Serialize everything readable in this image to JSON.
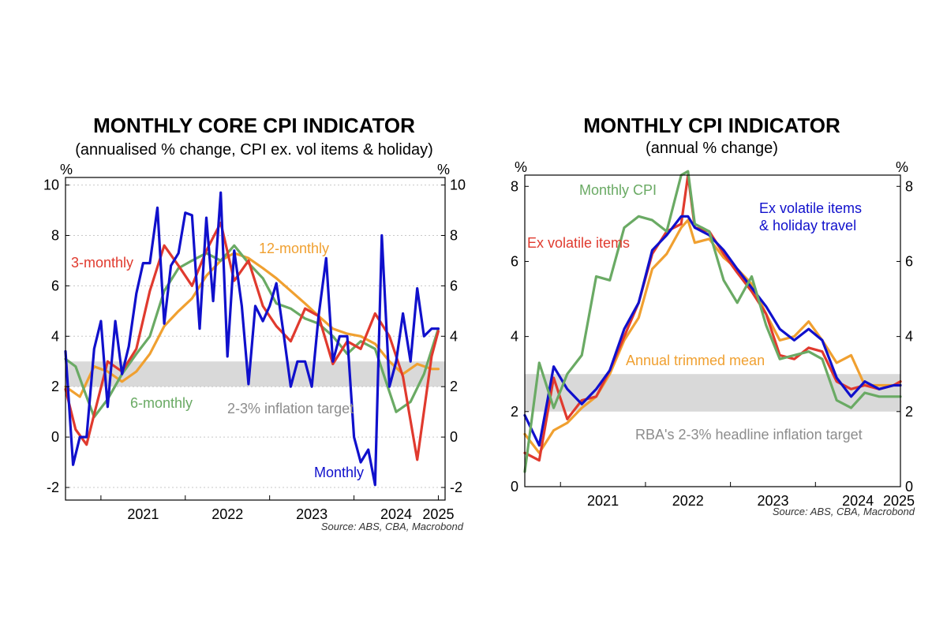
{
  "chart_data": [
    {
      "type": "line",
      "title": "MONTHLY CORE CPI INDICATOR",
      "subtitle": "(annualised % change, CPI ex. vol items & holiday)",
      "ylabel_left": "%",
      "ylabel_right": "%",
      "ylim": [
        -2.5,
        10.3
      ],
      "yticks": [
        -2,
        0,
        2,
        4,
        6,
        8,
        10
      ],
      "xlim": [
        2020.58,
        2025.08
      ],
      "xticks": [
        "2021",
        "2022",
        "2023",
        "2024",
        "2025"
      ],
      "grid": true,
      "target_band": {
        "from": 2,
        "to": 3,
        "color": "#d9d9d9",
        "label": "2-3% inflation target"
      },
      "source": "Source: ABS, CBA, Macrobond",
      "series": [
        {
          "name": "12-monthly",
          "color": "#f0a030",
          "x": [
            2020.58,
            2020.75,
            2020.92,
            2021.08,
            2021.25,
            2021.42,
            2021.58,
            2021.75,
            2021.92,
            2022.08,
            2022.25,
            2022.42,
            2022.58,
            2022.75,
            2022.92,
            2023.08,
            2023.25,
            2023.42,
            2023.58,
            2023.75,
            2023.92,
            2024.08,
            2024.25,
            2024.42,
            2024.58,
            2024.75,
            2024.92,
            2025.0
          ],
          "y": [
            2.0,
            1.6,
            2.8,
            2.6,
            2.2,
            2.6,
            3.3,
            4.4,
            5.0,
            5.5,
            6.4,
            7.0,
            7.3,
            7.1,
            6.7,
            6.3,
            5.8,
            5.3,
            4.8,
            4.3,
            4.1,
            4.0,
            3.7,
            3.0,
            2.5,
            2.9,
            2.7,
            2.7
          ]
        },
        {
          "name": "6-monthly",
          "color": "#6aaa64",
          "x": [
            2020.58,
            2020.7,
            2020.83,
            2020.92,
            2021.08,
            2021.25,
            2021.42,
            2021.58,
            2021.75,
            2021.92,
            2022.08,
            2022.25,
            2022.42,
            2022.58,
            2022.75,
            2022.92,
            2023.08,
            2023.25,
            2023.42,
            2023.58,
            2023.75,
            2023.92,
            2024.08,
            2024.25,
            2024.4,
            2024.5,
            2024.67,
            2024.83,
            2025.0
          ],
          "y": [
            3.1,
            2.8,
            1.6,
            0.8,
            1.5,
            2.5,
            3.3,
            4.0,
            5.8,
            6.7,
            7.0,
            7.3,
            7.0,
            7.6,
            6.9,
            6.3,
            5.3,
            5.1,
            4.7,
            4.5,
            4.0,
            3.3,
            3.8,
            3.5,
            2.0,
            1.0,
            1.4,
            2.5,
            4.3
          ]
        },
        {
          "name": "3-monthly",
          "color": "#e03a2e",
          "x": [
            2020.58,
            2020.7,
            2020.83,
            2020.92,
            2021.08,
            2021.25,
            2021.42,
            2021.58,
            2021.75,
            2021.92,
            2022.08,
            2022.25,
            2022.42,
            2022.58,
            2022.75,
            2022.92,
            2023.08,
            2023.25,
            2023.42,
            2023.58,
            2023.75,
            2023.92,
            2024.08,
            2024.25,
            2024.42,
            2024.58,
            2024.75,
            2024.92,
            2025.0
          ],
          "y": [
            1.9,
            0.3,
            -0.3,
            0.9,
            3.0,
            2.6,
            3.5,
            5.8,
            7.6,
            6.8,
            6.0,
            7.4,
            8.5,
            6.2,
            7.0,
            5.2,
            4.4,
            3.8,
            5.1,
            4.8,
            2.9,
            3.8,
            3.5,
            4.9,
            4.0,
            2.4,
            -0.9,
            3.2,
            4.2
          ]
        },
        {
          "name": "Monthly",
          "color": "#1010cc",
          "x": [
            2020.58,
            2020.67,
            2020.75,
            2020.83,
            2020.92,
            2021.0,
            2021.08,
            2021.17,
            2021.25,
            2021.33,
            2021.42,
            2021.5,
            2021.58,
            2021.67,
            2021.75,
            2021.83,
            2021.92,
            2022.0,
            2022.08,
            2022.17,
            2022.25,
            2022.33,
            2022.42,
            2022.5,
            2022.58,
            2022.67,
            2022.75,
            2022.83,
            2022.92,
            2023.0,
            2023.08,
            2023.17,
            2023.25,
            2023.33,
            2023.42,
            2023.5,
            2023.58,
            2023.67,
            2023.75,
            2023.83,
            2023.92,
            2024.0,
            2024.08,
            2024.17,
            2024.25,
            2024.33,
            2024.42,
            2024.5,
            2024.58,
            2024.67,
            2024.75,
            2024.83,
            2024.92,
            2025.0
          ],
          "y": [
            3.4,
            -1.1,
            0.0,
            0.0,
            3.5,
            4.6,
            1.2,
            4.6,
            2.5,
            3.6,
            5.7,
            6.9,
            6.9,
            9.1,
            4.5,
            6.8,
            7.3,
            8.9,
            8.8,
            4.3,
            8.7,
            5.4,
            9.7,
            3.2,
            7.4,
            5.2,
            2.1,
            5.2,
            4.6,
            5.2,
            6.1,
            4.0,
            2.0,
            3.0,
            3.0,
            2.0,
            4.8,
            7.1,
            3.0,
            4.0,
            4.0,
            0.0,
            -1.0,
            -0.5,
            -1.9,
            8.0,
            2.0,
            3.0,
            4.9,
            3.0,
            5.9,
            4.0,
            4.3,
            4.3
          ]
        }
      ],
      "annotations": [
        {
          "text": "3-monthly",
          "series": "3-monthly"
        },
        {
          "text": "12-monthly",
          "series": "12-monthly"
        },
        {
          "text": "6-monthly",
          "series": "6-monthly"
        },
        {
          "text": "Monthly",
          "series": "Monthly"
        }
      ]
    },
    {
      "type": "line",
      "title": "MONTHLY CPI INDICATOR",
      "subtitle": "(annual % change)",
      "ylabel_left": "%",
      "ylabel_right": "%",
      "ylim": [
        0,
        8.3
      ],
      "yticks": [
        0,
        2,
        4,
        6,
        8
      ],
      "xlim": [
        2020.58,
        2025.0
      ],
      "xticks": [
        "2021",
        "2022",
        "2023",
        "2024",
        "2025"
      ],
      "grid": false,
      "target_band": {
        "from": 2,
        "to": 3,
        "color": "#d9d9d9",
        "label": "RBA's 2-3% headline inflation target"
      },
      "source": "Source: ABS, CBA, Macrobond",
      "series": [
        {
          "name": "Annual trimmed mean",
          "color": "#f0a030",
          "x": [
            2020.58,
            2020.75,
            2020.92,
            2021.08,
            2021.25,
            2021.42,
            2021.58,
            2021.75,
            2021.92,
            2022.08,
            2022.25,
            2022.42,
            2022.5,
            2022.58,
            2022.75,
            2022.92,
            2023.08,
            2023.25,
            2023.42,
            2023.58,
            2023.75,
            2023.92,
            2024.08,
            2024.25,
            2024.42,
            2024.58,
            2024.75,
            2024.92,
            2025.0
          ],
          "y": [
            1.4,
            0.9,
            1.5,
            1.7,
            2.1,
            2.4,
            3.0,
            3.9,
            4.5,
            5.8,
            6.2,
            6.9,
            7.1,
            6.5,
            6.6,
            6.1,
            5.8,
            5.4,
            4.6,
            3.9,
            4.0,
            4.4,
            3.9,
            3.3,
            3.5,
            2.7,
            2.7,
            2.7,
            2.8
          ]
        },
        {
          "name": "Ex volatile items",
          "color": "#e03a2e",
          "x": [
            2020.58,
            2020.75,
            2020.92,
            2021.08,
            2021.25,
            2021.42,
            2021.58,
            2021.75,
            2021.92,
            2022.08,
            2022.25,
            2022.42,
            2022.5,
            2022.58,
            2022.75,
            2022.92,
            2023.08,
            2023.25,
            2023.42,
            2023.58,
            2023.75,
            2023.92,
            2024.08,
            2024.25,
            2024.42,
            2024.58,
            2024.75,
            2024.92,
            2025.0
          ],
          "y": [
            0.9,
            0.7,
            2.9,
            1.8,
            2.3,
            2.4,
            3.1,
            4.0,
            4.9,
            6.2,
            6.8,
            7.0,
            8.3,
            6.9,
            6.8,
            6.2,
            5.7,
            5.2,
            4.6,
            3.5,
            3.4,
            3.7,
            3.6,
            2.8,
            2.6,
            2.7,
            2.6,
            2.7,
            2.8
          ]
        },
        {
          "name": "Ex volatile items & holiday travel",
          "color": "#1010cc",
          "x": [
            2020.58,
            2020.75,
            2020.92,
            2021.08,
            2021.25,
            2021.42,
            2021.58,
            2021.75,
            2021.92,
            2022.08,
            2022.25,
            2022.42,
            2022.5,
            2022.58,
            2022.75,
            2022.92,
            2023.08,
            2023.25,
            2023.42,
            2023.58,
            2023.75,
            2023.92,
            2024.08,
            2024.25,
            2024.42,
            2024.58,
            2024.75,
            2024.92,
            2025.0
          ],
          "y": [
            1.9,
            1.1,
            3.2,
            2.6,
            2.2,
            2.6,
            3.1,
            4.2,
            4.9,
            6.3,
            6.7,
            7.2,
            7.2,
            6.9,
            6.7,
            6.3,
            5.8,
            5.3,
            4.8,
            4.2,
            3.9,
            4.2,
            3.9,
            2.9,
            2.4,
            2.8,
            2.6,
            2.7,
            2.7
          ]
        },
        {
          "name": "Monthly CPI",
          "color": "#6aaa64",
          "x": [
            2020.58,
            2020.75,
            2020.92,
            2021.08,
            2021.25,
            2021.42,
            2021.58,
            2021.75,
            2021.92,
            2022.08,
            2022.25,
            2022.42,
            2022.5,
            2022.58,
            2022.75,
            2022.92,
            2023.08,
            2023.25,
            2023.42,
            2023.58,
            2023.75,
            2023.92,
            2024.08,
            2024.25,
            2024.42,
            2024.58,
            2024.75,
            2024.92,
            2025.0
          ],
          "y": [
            0.4,
            3.3,
            2.1,
            3.0,
            3.5,
            5.6,
            5.5,
            6.9,
            7.2,
            7.1,
            6.8,
            8.3,
            8.4,
            7.0,
            6.8,
            5.5,
            4.9,
            5.6,
            4.3,
            3.4,
            3.5,
            3.6,
            3.4,
            2.3,
            2.1,
            2.5,
            2.4,
            2.4,
            2.4
          ]
        }
      ],
      "annotations": [
        {
          "text": "Monthly CPI",
          "series": "Monthly CPI"
        },
        {
          "text": "Ex volatile items",
          "series": "Ex volatile items"
        },
        {
          "text": "Ex volatile items",
          "series": "Ex volatile items & holiday travel"
        },
        {
          "text": "& holiday travel",
          "series": "Ex volatile items & holiday travel"
        },
        {
          "text": "Annual trimmed mean",
          "series": "Annual trimmed mean"
        }
      ]
    }
  ]
}
